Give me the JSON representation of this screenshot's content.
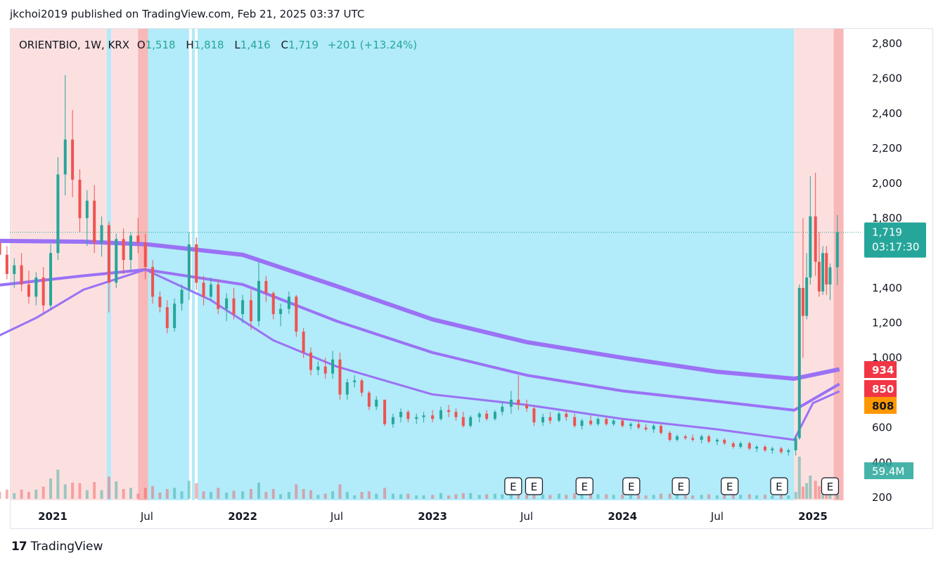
{
  "header": {
    "text": "jkchoi2019 published on TradingView.com, Feb 21, 2025 03:37 UTC"
  },
  "legend": {
    "symbol": "ORIENTBIO, 1W, KRX",
    "o_label": "O",
    "o_value": "1,518",
    "h_label": "H",
    "h_value": "1,818",
    "l_label": "L",
    "l_value": "1,416",
    "c_label": "C",
    "c_value": "1,719",
    "change": "+201 (+13.24%)"
  },
  "price_tag": {
    "price": "1,719",
    "timer": "03:17:30"
  },
  "ma_tags": [
    {
      "label": "934",
      "color": "#f23645",
      "value": 934
    },
    {
      "label": "850",
      "color": "#f23645",
      "value": 850
    },
    {
      "label": "808",
      "color": "#ff9800",
      "value": 808
    }
  ],
  "volume_tag": "59.4M",
  "earnings_label": "E",
  "footer": {
    "brand": "TradingView"
  },
  "colors": {
    "up": "#26a69a",
    "down": "#ef5350",
    "bg_blue": "#b2ebf9",
    "bg_red": "#fce0e0",
    "ma": "#9a72f5",
    "ma_red": "#e81c1c",
    "ma_orange": "#f9c27d"
  },
  "chart_data": {
    "type": "candlestick",
    "symbol": "ORIENTBIO",
    "interval": "1W",
    "ylim": [
      200,
      2900
    ],
    "y_ticks": [
      "2,800",
      "2,600",
      "2,400",
      "2,200",
      "2,000",
      "1,800",
      "1,600",
      "1,400",
      "1,200",
      "1,000",
      "800",
      "600",
      "400",
      "200"
    ],
    "x_ticks": [
      "2021",
      "Jul",
      "2022",
      "Jul",
      "2023",
      "Jul",
      "2024",
      "Jul",
      "2025"
    ],
    "x_tick_dates": [
      "2021-01-01",
      "2021-07-01",
      "2022-01-01",
      "2022-07-01",
      "2023-01-01",
      "2023-07-01",
      "2024-01-01",
      "2024-07-01",
      "2025-01-01"
    ],
    "last_close": 1719,
    "earnings_dates": [
      "2023-06-05",
      "2023-07-15",
      "2023-10-20",
      "2024-01-18",
      "2024-04-22",
      "2024-07-25",
      "2024-10-28",
      "2025-02-03"
    ],
    "moving_averages": [
      {
        "points": [
          [
            "2020-09-01",
            1670
          ],
          [
            "2021-03-01",
            1665
          ],
          [
            "2021-07-01",
            1650
          ],
          [
            "2022-01-01",
            1590
          ],
          [
            "2022-07-01",
            1410
          ],
          [
            "2023-01-01",
            1220
          ],
          [
            "2023-07-01",
            1090
          ],
          [
            "2024-01-01",
            1000
          ],
          [
            "2024-07-01",
            920
          ],
          [
            "2024-11-26",
            880
          ],
          [
            "2025-02-21",
            934
          ]
        ]
      },
      {
        "points": [
          [
            "2020-09-01",
            1410
          ],
          [
            "2021-03-01",
            1470
          ],
          [
            "2021-06-28",
            1505
          ],
          [
            "2022-01-01",
            1420
          ],
          [
            "2022-07-01",
            1210
          ],
          [
            "2023-01-01",
            1030
          ],
          [
            "2023-07-01",
            900
          ],
          [
            "2024-01-01",
            810
          ],
          [
            "2024-07-01",
            750
          ],
          [
            "2024-11-26",
            700
          ],
          [
            "2025-02-21",
            850
          ]
        ]
      },
      {
        "points": [
          [
            "2020-09-01",
            1100
          ],
          [
            "2020-12-01",
            1230
          ],
          [
            "2021-03-01",
            1390
          ],
          [
            "2021-06-28",
            1505
          ],
          [
            "2021-11-01",
            1330
          ],
          [
            "2022-03-01",
            1100
          ],
          [
            "2022-07-01",
            950
          ],
          [
            "2023-01-01",
            790
          ],
          [
            "2023-07-01",
            730
          ],
          [
            "2024-01-01",
            650
          ],
          [
            "2024-07-01",
            590
          ],
          [
            "2024-11-26",
            530
          ],
          [
            "2025-01-01",
            740
          ],
          [
            "2025-02-21",
            808
          ]
        ]
      }
    ],
    "candles": [
      [
        "2020-09-21",
        1660,
        1720,
        1540,
        1590
      ],
      [
        "2020-10-05",
        1590,
        1640,
        1450,
        1480
      ],
      [
        "2020-10-19",
        1480,
        1570,
        1400,
        1530
      ],
      [
        "2020-11-02",
        1530,
        1600,
        1380,
        1420
      ],
      [
        "2020-11-16",
        1420,
        1500,
        1310,
        1350
      ],
      [
        "2020-11-30",
        1350,
        1490,
        1300,
        1460
      ],
      [
        "2020-12-14",
        1460,
        1520,
        1260,
        1300
      ],
      [
        "2020-12-28",
        1300,
        1650,
        1280,
        1600
      ],
      [
        "2021-01-11",
        1600,
        2150,
        1560,
        2050
      ],
      [
        "2021-01-25",
        2050,
        2620,
        1930,
        2250
      ],
      [
        "2021-02-08",
        2250,
        2420,
        1920,
        2020
      ],
      [
        "2021-02-22",
        2020,
        2080,
        1720,
        1800
      ],
      [
        "2021-03-08",
        1800,
        1960,
        1640,
        1900
      ],
      [
        "2021-03-22",
        1900,
        1990,
        1600,
        1660
      ],
      [
        "2021-04-05",
        1660,
        1810,
        1580,
        1760
      ],
      [
        "2021-04-19",
        1760,
        1780,
        1260,
        1430
      ],
      [
        "2021-05-03",
        1430,
        1710,
        1400,
        1680
      ],
      [
        "2021-05-17",
        1680,
        1740,
        1480,
        1560
      ],
      [
        "2021-05-31",
        1560,
        1720,
        1500,
        1700
      ],
      [
        "2021-06-14",
        1700,
        1800,
        1600,
        1660
      ],
      [
        "2021-06-28",
        1660,
        1710,
        1450,
        1520
      ],
      [
        "2021-07-12",
        1520,
        1560,
        1310,
        1350
      ],
      [
        "2021-07-26",
        1350,
        1380,
        1260,
        1290
      ],
      [
        "2021-08-09",
        1290,
        1330,
        1140,
        1170
      ],
      [
        "2021-08-23",
        1170,
        1340,
        1150,
        1310
      ],
      [
        "2021-09-06",
        1310,
        1420,
        1270,
        1390
      ],
      [
        "2021-09-20",
        1390,
        1720,
        1330,
        1650
      ],
      [
        "2021-10-04",
        1650,
        1690,
        1390,
        1430
      ],
      [
        "2021-10-18",
        1430,
        1470,
        1300,
        1350
      ],
      [
        "2021-11-01",
        1350,
        1460,
        1330,
        1420
      ],
      [
        "2021-11-15",
        1420,
        1450,
        1250,
        1280
      ],
      [
        "2021-12-01",
        1280,
        1370,
        1210,
        1340
      ],
      [
        "2021-12-15",
        1340,
        1400,
        1220,
        1250
      ],
      [
        "2022-01-01",
        1250,
        1360,
        1200,
        1330
      ],
      [
        "2022-01-17",
        1330,
        1390,
        1160,
        1210
      ],
      [
        "2022-02-01",
        1210,
        1550,
        1180,
        1440
      ],
      [
        "2022-02-15",
        1440,
        1470,
        1320,
        1370
      ],
      [
        "2022-03-01",
        1370,
        1380,
        1220,
        1250
      ],
      [
        "2022-03-15",
        1250,
        1310,
        1180,
        1280
      ],
      [
        "2022-03-31",
        1280,
        1380,
        1250,
        1350
      ],
      [
        "2022-04-14",
        1350,
        1360,
        1120,
        1150
      ],
      [
        "2022-04-28",
        1150,
        1170,
        1000,
        1030
      ],
      [
        "2022-05-12",
        1030,
        1060,
        900,
        930
      ],
      [
        "2022-05-26",
        930,
        980,
        900,
        950
      ],
      [
        "2022-06-09",
        950,
        1000,
        880,
        910
      ],
      [
        "2022-06-23",
        910,
        1040,
        880,
        990
      ],
      [
        "2022-07-07",
        990,
        1030,
        760,
        790
      ],
      [
        "2022-07-21",
        790,
        880,
        760,
        860
      ],
      [
        "2022-08-04",
        860,
        900,
        830,
        870
      ],
      [
        "2022-08-18",
        870,
        880,
        780,
        800
      ],
      [
        "2022-09-01",
        800,
        810,
        700,
        720
      ],
      [
        "2022-09-15",
        720,
        780,
        700,
        760
      ],
      [
        "2022-10-01",
        760,
        740,
        610,
        620
      ],
      [
        "2022-10-17",
        620,
        680,
        600,
        660
      ],
      [
        "2022-11-01",
        660,
        710,
        630,
        690
      ],
      [
        "2022-11-15",
        690,
        700,
        630,
        650
      ],
      [
        "2022-12-01",
        650,
        680,
        620,
        660
      ],
      [
        "2022-12-15",
        660,
        690,
        630,
        670
      ],
      [
        "2023-01-01",
        670,
        700,
        630,
        650
      ],
      [
        "2023-01-17",
        650,
        720,
        640,
        700
      ],
      [
        "2023-02-01",
        700,
        730,
        660,
        690
      ],
      [
        "2023-02-15",
        690,
        710,
        640,
        660
      ],
      [
        "2023-03-01",
        660,
        690,
        600,
        610
      ],
      [
        "2023-03-15",
        610,
        670,
        600,
        660
      ],
      [
        "2023-04-01",
        660,
        690,
        630,
        680
      ],
      [
        "2023-04-15",
        680,
        700,
        640,
        650
      ],
      [
        "2023-05-01",
        650,
        700,
        640,
        690
      ],
      [
        "2023-05-15",
        690,
        750,
        670,
        720
      ],
      [
        "2023-06-01",
        720,
        810,
        680,
        760
      ],
      [
        "2023-06-15",
        760,
        900,
        700,
        730
      ],
      [
        "2023-07-01",
        730,
        760,
        690,
        710
      ],
      [
        "2023-07-15",
        710,
        730,
        610,
        630
      ],
      [
        "2023-08-01",
        630,
        680,
        610,
        660
      ],
      [
        "2023-08-15",
        660,
        690,
        620,
        640
      ],
      [
        "2023-09-01",
        640,
        690,
        630,
        680
      ],
      [
        "2023-09-15",
        680,
        700,
        640,
        660
      ],
      [
        "2023-10-01",
        660,
        680,
        600,
        610
      ],
      [
        "2023-10-15",
        610,
        650,
        590,
        640
      ],
      [
        "2023-11-01",
        640,
        670,
        610,
        620
      ],
      [
        "2023-11-15",
        620,
        660,
        610,
        650
      ],
      [
        "2023-12-01",
        650,
        660,
        610,
        620
      ],
      [
        "2023-12-15",
        620,
        650,
        610,
        640
      ],
      [
        "2024-01-01",
        640,
        650,
        600,
        610
      ],
      [
        "2024-01-17",
        610,
        630,
        590,
        620
      ],
      [
        "2024-02-01",
        620,
        640,
        590,
        600
      ],
      [
        "2024-02-15",
        600,
        620,
        580,
        590
      ],
      [
        "2024-03-01",
        590,
        620,
        570,
        610
      ],
      [
        "2024-03-15",
        610,
        620,
        560,
        570
      ],
      [
        "2024-04-01",
        570,
        580,
        520,
        530
      ],
      [
        "2024-04-15",
        530,
        560,
        520,
        550
      ],
      [
        "2024-05-01",
        550,
        560,
        530,
        540
      ],
      [
        "2024-05-15",
        540,
        560,
        520,
        530
      ],
      [
        "2024-06-01",
        530,
        560,
        510,
        550
      ],
      [
        "2024-06-15",
        550,
        560,
        510,
        520
      ],
      [
        "2024-07-01",
        520,
        540,
        500,
        530
      ],
      [
        "2024-07-15",
        530,
        540,
        500,
        510
      ],
      [
        "2024-08-01",
        510,
        520,
        480,
        490
      ],
      [
        "2024-08-15",
        490,
        520,
        480,
        510
      ],
      [
        "2024-09-01",
        510,
        520,
        470,
        480
      ],
      [
        "2024-09-15",
        480,
        500,
        460,
        490
      ],
      [
        "2024-10-01",
        490,
        500,
        460,
        470
      ],
      [
        "2024-10-15",
        470,
        490,
        450,
        480
      ],
      [
        "2024-11-01",
        480,
        490,
        450,
        460
      ],
      [
        "2024-11-15",
        460,
        480,
        440,
        470
      ],
      [
        "2024-11-29",
        470,
        560,
        440,
        540
      ],
      [
        "2024-12-06",
        540,
        1420,
        530,
        1400
      ],
      [
        "2024-12-13",
        1400,
        1800,
        1000,
        1240
      ],
      [
        "2024-12-20",
        1240,
        1600,
        1220,
        1460
      ],
      [
        "2024-12-27",
        1460,
        2040,
        1420,
        1810
      ],
      [
        "2025-01-06",
        1810,
        2060,
        1470,
        1550
      ],
      [
        "2025-01-13",
        1550,
        1720,
        1350,
        1380
      ],
      [
        "2025-01-20",
        1380,
        1640,
        1360,
        1600
      ],
      [
        "2025-01-27",
        1600,
        1640,
        1360,
        1420
      ],
      [
        "2025-02-03",
        1420,
        1540,
        1330,
        1518
      ],
      [
        "2025-02-17",
        1518,
        1818,
        1416,
        1719
      ]
    ]
  }
}
